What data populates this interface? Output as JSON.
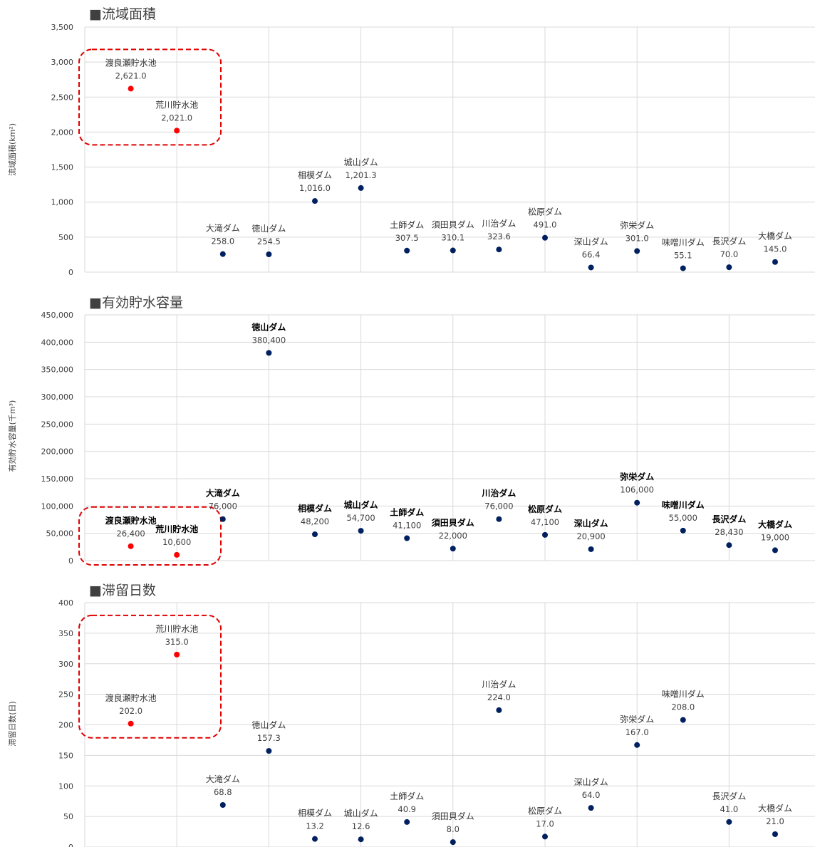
{
  "style": {
    "res_color": "#ff0000",
    "dam_color": "#002060",
    "box_color": "#e00000",
    "grid_color": "#d9d9d9",
    "text_color": "#404040"
  },
  "chart_data": [
    {
      "type": "scatter",
      "title": "■流域面積",
      "ylabel": "流域面積(km²)",
      "ylim": [
        0,
        3500
      ],
      "yticks": [
        0,
        500,
        1000,
        1500,
        2000,
        2500,
        3000,
        3500
      ],
      "ytick_labels": [
        "0",
        "500",
        "1,000",
        "1,500",
        "2,000",
        "2,500",
        "3,000",
        "3,500"
      ],
      "grid": true,
      "points": [
        {
          "name": "渡良瀬貯水池",
          "value": 2621.0,
          "label": "2,621.0",
          "highlight": true
        },
        {
          "name": "荒川貯水池",
          "value": 2021.0,
          "label": "2,021.0",
          "highlight": true
        },
        {
          "name": "大滝ダム",
          "value": 258.0,
          "label": "258.0"
        },
        {
          "name": "徳山ダム",
          "value": 254.5,
          "label": "254.5"
        },
        {
          "name": "相模ダム",
          "value": 1016.0,
          "label": "1,016.0"
        },
        {
          "name": "城山ダム",
          "value": 1201.3,
          "label": "1,201.3"
        },
        {
          "name": "土師ダム",
          "value": 307.5,
          "label": "307.5"
        },
        {
          "name": "須田貝ダム",
          "value": 310.1,
          "label": "310.1"
        },
        {
          "name": "川治ダム",
          "value": 323.6,
          "label": "323.6"
        },
        {
          "name": "松原ダム",
          "value": 491.0,
          "label": "491.0"
        },
        {
          "name": "深山ダム",
          "value": 66.4,
          "label": "66.4"
        },
        {
          "name": "弥栄ダム",
          "value": 301.0,
          "label": "301.0"
        },
        {
          "name": "味噌川ダム",
          "value": 55.1,
          "label": "55.1"
        },
        {
          "name": "長沢ダム",
          "value": 70.0,
          "label": "70.0"
        },
        {
          "name": "大橋ダム",
          "value": 145.0,
          "label": "145.0"
        }
      ]
    },
    {
      "type": "scatter",
      "title": "■有効貯水容量",
      "ylabel": "有効貯水容量(千m³)",
      "ylim": [
        0,
        450000
      ],
      "yticks": [
        0,
        50000,
        100000,
        150000,
        200000,
        250000,
        300000,
        350000,
        400000,
        450000
      ],
      "ytick_labels": [
        "0",
        "50,000",
        "100,000",
        "150,000",
        "200,000",
        "250,000",
        "300,000",
        "350,000",
        "400,000",
        "450,000"
      ],
      "grid": true,
      "points": [
        {
          "name": "渡良瀬貯水池",
          "value": 26400,
          "label": "26,400",
          "highlight": true
        },
        {
          "name": "荒川貯水池",
          "value": 10600,
          "label": "10,600",
          "highlight": true
        },
        {
          "name": "大滝ダム",
          "value": 76000,
          "label": "76,000"
        },
        {
          "name": "徳山ダム",
          "value": 380400,
          "label": "380,400"
        },
        {
          "name": "相模ダム",
          "value": 48200,
          "label": "48,200"
        },
        {
          "name": "城山ダム",
          "value": 54700,
          "label": "54,700"
        },
        {
          "name": "土師ダム",
          "value": 41100,
          "label": "41,100"
        },
        {
          "name": "須田貝ダム",
          "value": 22000,
          "label": "22,000"
        },
        {
          "name": "川治ダム",
          "value": 76000,
          "label": "76,000"
        },
        {
          "name": "松原ダム",
          "value": 47100,
          "label": "47,100"
        },
        {
          "name": "深山ダム",
          "value": 20900,
          "label": "20,900"
        },
        {
          "name": "弥栄ダム",
          "value": 106000,
          "label": "106,000"
        },
        {
          "name": "味噌川ダム",
          "value": 55000,
          "label": "55,000"
        },
        {
          "name": "長沢ダム",
          "value": 28430,
          "label": "28,430"
        },
        {
          "name": "大橋ダム",
          "value": 19000,
          "label": "19,000"
        }
      ]
    },
    {
      "type": "scatter",
      "title": "■滞留日数",
      "ylabel": "滞留日数(日)",
      "ylim": [
        0,
        400
      ],
      "yticks": [
        0,
        50,
        100,
        150,
        200,
        250,
        300,
        350,
        400
      ],
      "ytick_labels": [
        "0",
        "50",
        "100",
        "150",
        "200",
        "250",
        "300",
        "350",
        "400"
      ],
      "grid": true,
      "points": [
        {
          "name": "渡良瀬貯水池",
          "value": 202.0,
          "label": "202.0",
          "highlight": true
        },
        {
          "name": "荒川貯水池",
          "value": 315.0,
          "label": "315.0",
          "highlight": true
        },
        {
          "name": "大滝ダム",
          "value": 68.8,
          "label": "68.8"
        },
        {
          "name": "徳山ダム",
          "value": 157.3,
          "label": "157.3"
        },
        {
          "name": "相模ダム",
          "value": 13.2,
          "label": "13.2"
        },
        {
          "name": "城山ダム",
          "value": 12.6,
          "label": "12.6"
        },
        {
          "name": "土師ダム",
          "value": 40.9,
          "label": "40.9"
        },
        {
          "name": "須田貝ダム",
          "value": 8.0,
          "label": "8.0"
        },
        {
          "name": "川治ダム",
          "value": 224.0,
          "label": "224.0"
        },
        {
          "name": "松原ダム",
          "value": 17.0,
          "label": "17.0"
        },
        {
          "name": "深山ダム",
          "value": 64.0,
          "label": "64.0"
        },
        {
          "name": "弥栄ダム",
          "value": 167.0,
          "label": "167.0"
        },
        {
          "name": "味噌川ダム",
          "value": 208.0,
          "label": "208.0"
        },
        {
          "name": "長沢ダム",
          "value": 41.0,
          "label": "41.0"
        },
        {
          "name": "大橋ダム",
          "value": 21.0,
          "label": "21.0"
        }
      ]
    }
  ]
}
